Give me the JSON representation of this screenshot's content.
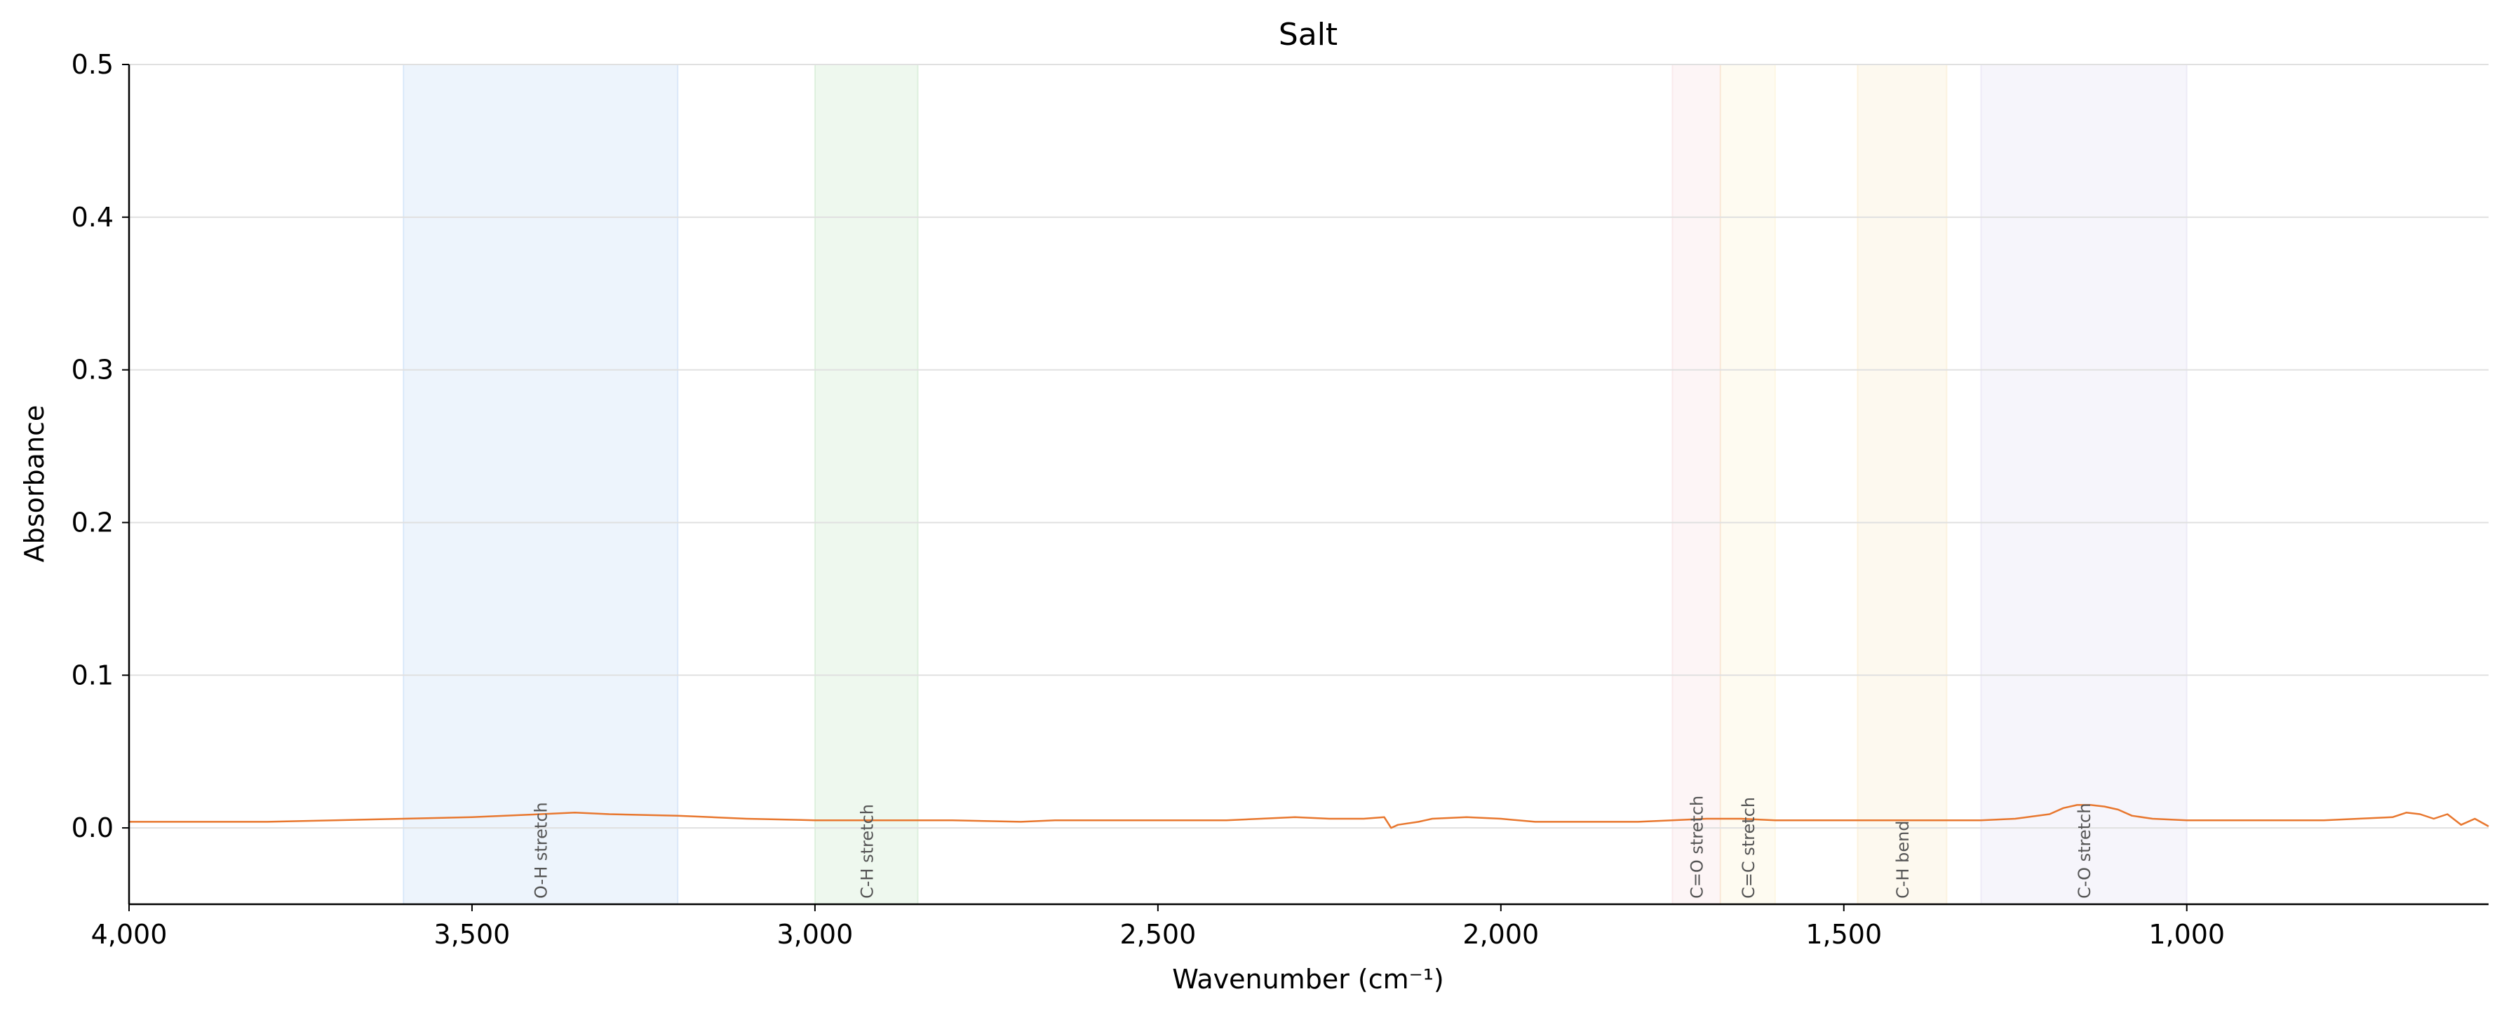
{
  "chart_data": {
    "type": "line",
    "title": "Salt",
    "xlabel": "Wavenumber (cm⁻¹)",
    "ylabel": "Absorbance",
    "xlim": [
      4000,
      560
    ],
    "x_reversed": true,
    "ylim": [
      -0.05,
      0.5
    ],
    "x_ticks": [
      4000,
      3500,
      3000,
      2500,
      2000,
      1500,
      1000
    ],
    "x_tick_labels": [
      "4,000",
      "3,500",
      "3,000",
      "2,500",
      "2,000",
      "1,500",
      "1,000"
    ],
    "y_ticks": [
      0.0,
      0.1,
      0.2,
      0.3,
      0.4,
      0.5
    ],
    "y_tick_labels": [
      "0.0",
      "0.1",
      "0.2",
      "0.3",
      "0.4",
      "0.5"
    ],
    "grid": "horizontal",
    "line_color": "#e8772e",
    "regions": [
      {
        "label": "O-H stretch",
        "x_start": 3600,
        "x_end": 3200,
        "color": "#4a90e2"
      },
      {
        "label": "C-H stretch",
        "x_start": 3000,
        "x_end": 2850,
        "color": "#5cb85c"
      },
      {
        "label": "C=O stretch",
        "x_start": 1750,
        "x_end": 1680,
        "color": "#e8a0a8"
      },
      {
        "label": "C=C stretch",
        "x_start": 1680,
        "x_end": 1600,
        "color": "#f5d77a"
      },
      {
        "label": "C-H bend",
        "x_start": 1480,
        "x_end": 1350,
        "color": "#f0c060"
      },
      {
        "label": "C-O stretch",
        "x_start": 1300,
        "x_end": 1000,
        "color": "#a99ad6"
      }
    ],
    "series": [
      {
        "x": [
          4000,
          3900,
          3800,
          3700,
          3600,
          3500,
          3400,
          3350,
          3300,
          3200,
          3100,
          3000,
          2900,
          2800,
          2700,
          2650,
          2600,
          2500,
          2400,
          2350,
          2300,
          2250,
          2200,
          2170,
          2160,
          2150,
          2120,
          2100,
          2050,
          2000,
          1950,
          1900,
          1850,
          1800,
          1750,
          1700,
          1650,
          1600,
          1550,
          1500,
          1450,
          1400,
          1350,
          1300,
          1250,
          1200,
          1180,
          1160,
          1140,
          1120,
          1100,
          1080,
          1050,
          1000,
          950,
          900,
          850,
          800,
          750,
          700,
          680,
          660,
          640,
          620,
          600,
          580,
          560
        ],
        "y": [
          0.004,
          0.004,
          0.004,
          0.005,
          0.006,
          0.007,
          0.009,
          0.01,
          0.009,
          0.008,
          0.006,
          0.005,
          0.005,
          0.005,
          0.004,
          0.005,
          0.005,
          0.005,
          0.005,
          0.006,
          0.007,
          0.006,
          0.006,
          0.007,
          0.0,
          0.002,
          0.004,
          0.006,
          0.007,
          0.006,
          0.004,
          0.004,
          0.004,
          0.004,
          0.005,
          0.006,
          0.006,
          0.005,
          0.005,
          0.005,
          0.005,
          0.005,
          0.005,
          0.005,
          0.006,
          0.009,
          0.013,
          0.015,
          0.015,
          0.014,
          0.012,
          0.008,
          0.006,
          0.005,
          0.005,
          0.005,
          0.005,
          0.005,
          0.006,
          0.007,
          0.01,
          0.009,
          0.006,
          0.009,
          0.002,
          0.006,
          0.001
        ]
      }
    ]
  }
}
